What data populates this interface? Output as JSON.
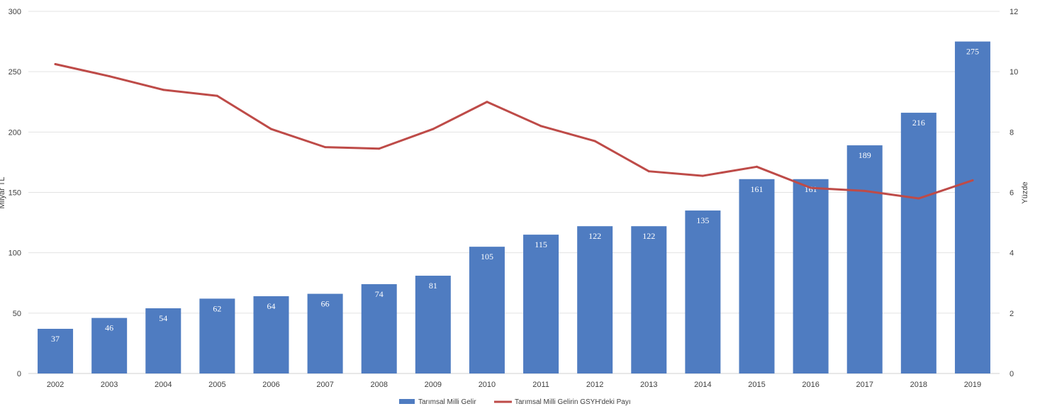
{
  "chart_data": {
    "type": "bar",
    "categories": [
      "2002",
      "2003",
      "2004",
      "2005",
      "2006",
      "2007",
      "2008",
      "2009",
      "2010",
      "2011",
      "2012",
      "2013",
      "2014",
      "2015",
      "2016",
      "2017",
      "2018",
      "2019"
    ],
    "series": [
      {
        "name": "Tarımsal Milli Gelir",
        "type": "bar",
        "axis": "left",
        "color": "#4F7CC1",
        "values": [
          37,
          46,
          54,
          62,
          64,
          66,
          74,
          81,
          105,
          115,
          122,
          122,
          135,
          161,
          161,
          189,
          216,
          275
        ]
      },
      {
        "name": "Tarımsal Milli Gelirin GSYH'deki Payı",
        "type": "line",
        "axis": "right",
        "color": "#BE4B48",
        "values": [
          10.25,
          9.85,
          9.4,
          9.2,
          8.1,
          7.5,
          7.45,
          8.1,
          9.0,
          8.2,
          7.7,
          6.7,
          6.55,
          6.85,
          6.15,
          6.05,
          5.8,
          6.4
        ]
      }
    ],
    "ylim": [
      0,
      300
    ],
    "y_ticks": [
      "0",
      "50",
      "100",
      "150",
      "200",
      "250",
      "300"
    ],
    "y2lim": [
      0,
      12
    ],
    "y2_ticks": [
      "0",
      "2",
      "4",
      "6",
      "8",
      "10",
      "12"
    ],
    "ylabel": "Milyar TL",
    "y2label": "Yüzde",
    "grid": true,
    "legend_position": "bottom",
    "data_labels": true
  }
}
